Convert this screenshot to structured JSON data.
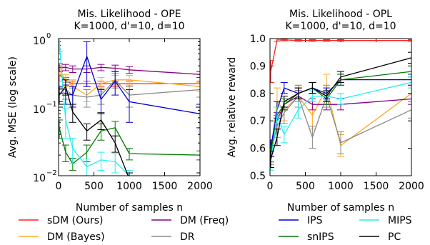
{
  "colors": {
    "sdm": "#ff2020",
    "dm_bayes": "#ffaa22",
    "dm_freq": "#880088",
    "dr": "#888888",
    "ips": "#0000cc",
    "snips": "#007700",
    "mips": "#22eeee",
    "pc": "#000000"
  },
  "legend": [
    {
      "key": "sdm",
      "label": "sDM (Ours)"
    },
    {
      "key": "dm_freq",
      "label": "DM (Freq)"
    },
    {
      "key": "ips",
      "label": "IPS"
    },
    {
      "key": "mips",
      "label": "MIPS"
    },
    {
      "key": "dm_bayes",
      "label": "DM (Bayes)"
    },
    {
      "key": "dr",
      "label": "DR"
    },
    {
      "key": "snips",
      "label": "snIPS"
    },
    {
      "key": "pc",
      "label": "PC"
    }
  ],
  "chart_data": [
    {
      "type": "line",
      "title": "Mis. Likelihood - OPE",
      "subtitle": "K=1000, d'=10, d=10",
      "xlabel": "Number of samples n",
      "ylabel": "Avg. MSE (log scale)",
      "yscale": "log",
      "xlim": [
        0,
        2000
      ],
      "ylim": [
        0.01,
        1
      ],
      "xticks": [
        "0",
        "500",
        "1000",
        "1500",
        "2000"
      ],
      "yticks": [
        {
          "value": 1,
          "label": "10",
          "exp": "0"
        },
        {
          "value": 0.1,
          "label": "10",
          "exp": "−1"
        },
        {
          "value": 0.01,
          "label": "10",
          "exp": "−2"
        }
      ],
      "x": [
        10,
        100,
        200,
        400,
        600,
        800,
        1000,
        2000
      ],
      "series": [
        {
          "key": "sdm",
          "y": [
            0.3,
            0.24,
            0.22,
            0.22,
            0.22,
            0.22,
            0.22,
            0.22
          ],
          "err": [
            0.06,
            0.03,
            0.02,
            0.02,
            0.02,
            0.02,
            0.02,
            0.02
          ]
        },
        {
          "key": "dm_bayes",
          "y": [
            0.35,
            0.25,
            0.2,
            0.15,
            0.22,
            0.25,
            0.25,
            0.2
          ],
          "err": [
            0.05,
            0.05,
            0.05,
            0.03,
            0.05,
            0.04,
            0.04,
            0.03
          ]
        },
        {
          "key": "dm_freq",
          "y": [
            0.38,
            0.38,
            0.36,
            0.36,
            0.38,
            0.37,
            0.35,
            0.3
          ],
          "err": [
            0.05,
            0.04,
            0.04,
            0.04,
            0.04,
            0.04,
            0.04,
            0.03
          ]
        },
        {
          "key": "dr",
          "y": [
            0.18,
            0.18,
            0.15,
            0.14,
            0.15,
            0.25,
            0.15,
            0.18
          ],
          "err": [
            0.06,
            0.05,
            0.04,
            0.04,
            0.04,
            0.06,
            0.05,
            0.04
          ]
        },
        {
          "key": "ips",
          "y": [
            0.16,
            0.16,
            0.15,
            0.55,
            0.13,
            0.24,
            0.12,
            0.08
          ],
          "err": [
            0.04,
            0.05,
            0.05,
            0.35,
            0.05,
            0.09,
            0.06,
            0.03
          ]
        },
        {
          "key": "snips",
          "y": [
            0.05,
            0.022,
            0.015,
            0.022,
            0.045,
            0.05,
            0.021,
            0.02
          ],
          "err": [
            0.015,
            0.006,
            0.003,
            0.006,
            0.012,
            0.012,
            0.004,
            0.003
          ]
        },
        {
          "key": "mips",
          "y": [
            0.9,
            0.065,
            0.025,
            0.0135,
            0.017,
            0.016,
            0.01,
            0.009
          ],
          "err": [
            0.25,
            0.03,
            0.01,
            0.004,
            0.005,
            0.005,
            0.002,
            0.002
          ]
        },
        {
          "key": "pc",
          "y": [
            0.15,
            0.2,
            0.085,
            0.045,
            0.065,
            0.03,
            0.009,
            0.009
          ],
          "err": [
            0.04,
            0.05,
            0.025,
            0.012,
            0.018,
            0.008,
            0.002,
            0.002
          ]
        }
      ]
    },
    {
      "type": "line",
      "title": "Mis. Likelihood - OPL",
      "subtitle": "K=1000, d'=10, d=10",
      "xlabel": "Number of samples n",
      "ylabel": "Avg. relative reward",
      "yscale": "linear",
      "xlim": [
        0,
        2000
      ],
      "ylim": [
        0.5,
        1.0
      ],
      "xticks": [
        "0",
        "500",
        "1000",
        "1500",
        "2000"
      ],
      "yticks": [
        "0.5",
        "0.6",
        "0.7",
        "0.8",
        "0.9",
        "1.0"
      ],
      "x": [
        10,
        100,
        200,
        400,
        600,
        800,
        1000,
        2000
      ],
      "series": [
        {
          "key": "sdm",
          "y": [
            0.88,
            0.995,
            0.995,
            0.993,
            0.993,
            0.993,
            0.993,
            0.993
          ],
          "err": [
            0.04,
            0.005,
            0.003,
            0.003,
            0.003,
            0.003,
            0.003,
            0.003
          ]
        },
        {
          "key": "dm_bayes",
          "y": [
            0.58,
            0.77,
            0.74,
            0.79,
            0.72,
            0.82,
            0.61,
            0.8
          ],
          "err": [
            0.05,
            0.05,
            0.04,
            0.04,
            0.05,
            0.05,
            0.04,
            0.03
          ]
        },
        {
          "key": "dm_freq",
          "y": [
            0.6,
            0.7,
            0.76,
            0.79,
            0.76,
            0.76,
            0.76,
            0.78
          ],
          "err": [
            0.03,
            0.03,
            0.02,
            0.02,
            0.02,
            0.02,
            0.02,
            0.02
          ]
        },
        {
          "key": "dr",
          "y": [
            0.58,
            0.68,
            0.73,
            0.79,
            0.64,
            0.79,
            0.62,
            0.74
          ],
          "err": [
            0.04,
            0.04,
            0.04,
            0.04,
            0.04,
            0.04,
            0.04,
            0.03
          ]
        },
        {
          "key": "ips",
          "y": [
            0.6,
            0.74,
            0.82,
            0.8,
            0.82,
            0.8,
            0.85,
            0.85
          ],
          "err": [
            0.03,
            0.03,
            0.02,
            0.02,
            0.02,
            0.02,
            0.02,
            0.02
          ]
        },
        {
          "key": "snips",
          "y": [
            0.58,
            0.72,
            0.76,
            0.8,
            0.82,
            0.78,
            0.85,
            0.88
          ],
          "err": [
            0.03,
            0.03,
            0.02,
            0.02,
            0.02,
            0.02,
            0.02,
            0.02
          ]
        },
        {
          "key": "mips",
          "y": [
            0.55,
            0.72,
            0.65,
            0.74,
            0.79,
            0.79,
            0.78,
            0.84
          ],
          "err": [
            0.03,
            0.03,
            0.03,
            0.03,
            0.02,
            0.02,
            0.02,
            0.02
          ]
        },
        {
          "key": "pc",
          "y": [
            0.56,
            0.64,
            0.77,
            0.8,
            0.82,
            0.79,
            0.86,
            0.93
          ],
          "err": [
            0.03,
            0.03,
            0.02,
            0.02,
            0.02,
            0.02,
            0.02,
            0.02
          ]
        }
      ]
    }
  ]
}
